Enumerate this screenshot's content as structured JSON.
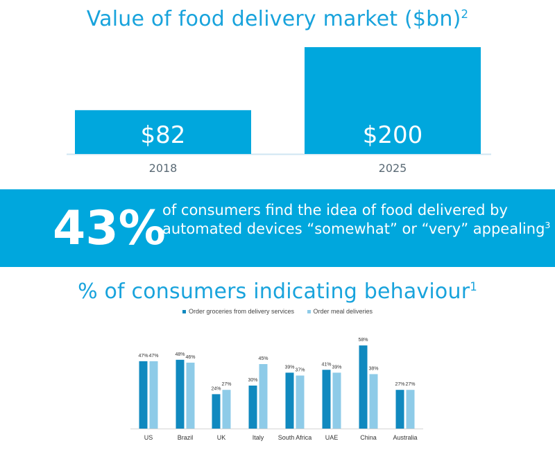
{
  "colors": {
    "primary": "#00a7dd",
    "title": "#18a3dc",
    "series1": "#1089bf",
    "series2": "#8ecbe8"
  },
  "band": {
    "stat": "43%",
    "text": "of consumers find the idea of food delivered by automated devices “somewhat” or “very” appealing",
    "footnote": "3"
  },
  "chart_data": [
    {
      "type": "bar",
      "title": "Value of food delivery market ($bn)",
      "title_footnote": "2",
      "categories": [
        "2018",
        "2025"
      ],
      "values": [
        82,
        200
      ],
      "value_labels": [
        "$82",
        "$200"
      ],
      "ylim": [
        0,
        200
      ]
    },
    {
      "type": "bar",
      "title": "% of consumers indicating behaviour",
      "title_footnote": "1",
      "categories": [
        "US",
        "Brazil",
        "UK",
        "Italy",
        "South Africa",
        "UAE",
        "China",
        "Australia"
      ],
      "series": [
        {
          "name": "Order groceries from delivery services",
          "values": [
            47,
            48,
            24,
            30,
            39,
            41,
            58,
            27
          ]
        },
        {
          "name": "Order meal deliveries",
          "values": [
            47,
            46,
            27,
            45,
            37,
            39,
            38,
            27
          ]
        }
      ],
      "ylim": [
        0,
        60
      ],
      "legend": "top"
    }
  ]
}
